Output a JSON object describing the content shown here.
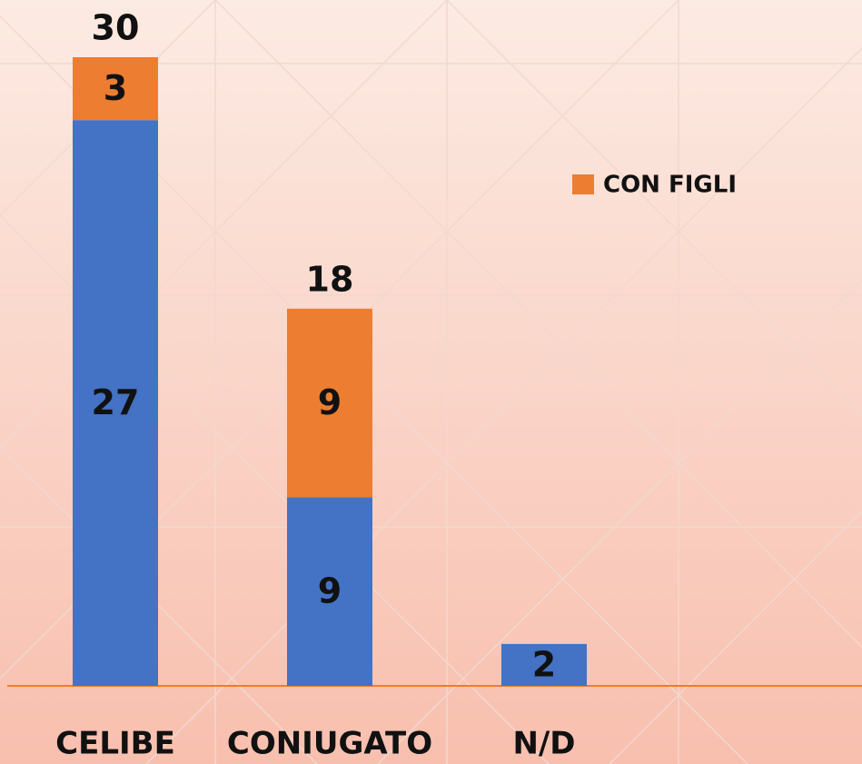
{
  "chart_data": {
    "type": "stacked-bar",
    "categories": [
      "CELIBE",
      "CONIUGATO",
      "N/D"
    ],
    "series": [
      {
        "color": "#4472c4",
        "values": [
          27,
          9,
          2
        ]
      },
      {
        "name": "CON FIGLI",
        "color": "#ed7d31",
        "values": [
          3,
          9,
          null
        ]
      }
    ],
    "totals": [
      30,
      18,
      null
    ],
    "legend": "upper right"
  }
}
